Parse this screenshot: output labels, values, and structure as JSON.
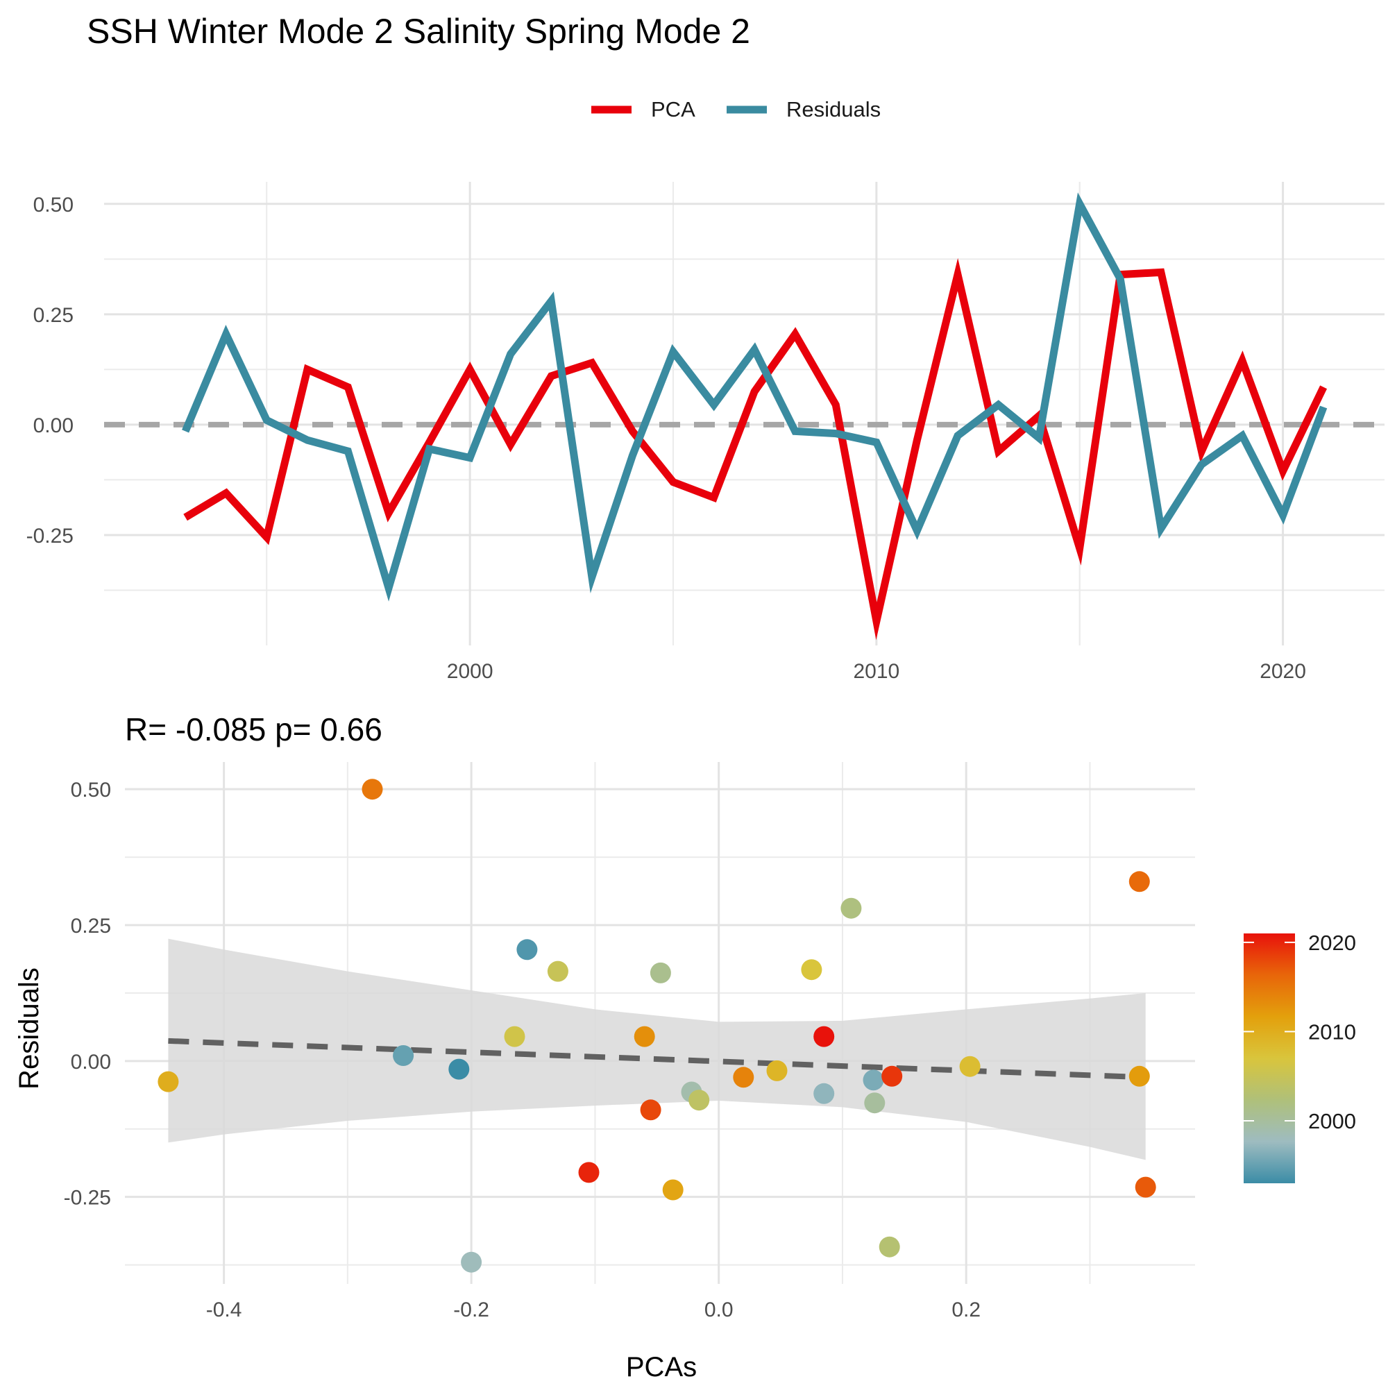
{
  "title": "SSH Winter Mode 2 Salinity Spring Mode 2",
  "legend": {
    "items": [
      {
        "label": "PCA",
        "color": "#E8000B"
      },
      {
        "label": "Residuals",
        "color": "#3A8BA0"
      }
    ],
    "placement": "top-center"
  },
  "colorbar": {
    "ticks": [
      "2020",
      "2010",
      "2000"
    ],
    "tick_values": [
      2020,
      2010,
      2000
    ],
    "range": [
      1993,
      2021
    ],
    "colors": [
      "#3B8CA6",
      "#9EBCC0",
      "#AFC07A",
      "#D9C53C",
      "#E3A00C",
      "#E8660A",
      "#E8120B"
    ]
  },
  "chart_data": [
    {
      "type": "line",
      "title": "",
      "xlabel": "",
      "ylabel": "",
      "x": [
        1993,
        1994,
        1995,
        1996,
        1997,
        1998,
        1999,
        2000,
        2001,
        2002,
        2003,
        2004,
        2005,
        2006,
        2007,
        2008,
        2009,
        2010,
        2011,
        2012,
        2013,
        2014,
        2015,
        2016,
        2017,
        2018,
        2019,
        2020,
        2021
      ],
      "series": [
        {
          "name": "PCA",
          "color": "#E8000B",
          "values": [
            -0.21,
            -0.155,
            -0.255,
            0.125,
            0.085,
            -0.2,
            -0.04,
            0.125,
            -0.045,
            0.11,
            0.14,
            -0.015,
            -0.13,
            -0.165,
            0.075,
            0.205,
            0.045,
            -0.445,
            -0.035,
            0.34,
            -0.06,
            0.02,
            -0.28,
            0.34,
            0.345,
            -0.06,
            0.145,
            -0.105,
            0.085
          ]
        },
        {
          "name": "Residuals",
          "color": "#3A8BA0",
          "values": [
            -0.015,
            0.205,
            0.01,
            -0.035,
            -0.06,
            -0.37,
            -0.055,
            -0.075,
            0.16,
            0.28,
            -0.345,
            -0.07,
            0.165,
            0.045,
            0.17,
            -0.015,
            -0.02,
            -0.04,
            -0.24,
            -0.025,
            0.045,
            -0.03,
            0.5,
            0.33,
            -0.235,
            -0.09,
            -0.025,
            -0.205,
            0.04
          ]
        }
      ],
      "reference_line": {
        "y": 0,
        "style": "dashed",
        "color": "#A6A6A6"
      },
      "ylim": [
        -0.5,
        0.55
      ],
      "xlim": [
        1991,
        2022.5
      ],
      "yticks": [
        -0.25,
        0.0,
        0.25,
        0.5
      ],
      "ytick_labels": [
        "-0.25",
        "0.00",
        "0.25",
        "0.50"
      ],
      "xticks": [
        2000,
        2010,
        2020
      ],
      "xtick_labels": [
        "2000",
        "2010",
        "2020"
      ],
      "grid": true
    },
    {
      "type": "scatter",
      "title": "R= -0.085  p= 0.66",
      "xlabel": "PCAs",
      "ylabel": "Residuals",
      "points": [
        {
          "x": -0.21,
          "y": -0.015,
          "year": 1993
        },
        {
          "x": -0.155,
          "y": 0.205,
          "year": 1994
        },
        {
          "x": -0.255,
          "y": 0.01,
          "year": 1995
        },
        {
          "x": 0.125,
          "y": -0.035,
          "year": 1996
        },
        {
          "x": 0.085,
          "y": -0.06,
          "year": 1997
        },
        {
          "x": -0.2,
          "y": -0.37,
          "year": 1998
        },
        {
          "x": -0.022,
          "y": -0.057,
          "year": 1999
        },
        {
          "x": 0.126,
          "y": -0.077,
          "year": 2000
        },
        {
          "x": -0.047,
          "y": 0.162,
          "year": 2001
        },
        {
          "x": 0.107,
          "y": 0.281,
          "year": 2002
        },
        {
          "x": 0.138,
          "y": -0.342,
          "year": 2003
        },
        {
          "x": -0.016,
          "y": -0.072,
          "year": 2004
        },
        {
          "x": -0.13,
          "y": 0.165,
          "year": 2005
        },
        {
          "x": -0.165,
          "y": 0.045,
          "year": 2006
        },
        {
          "x": 0.075,
          "y": 0.168,
          "year": 2007
        },
        {
          "x": 0.203,
          "y": -0.01,
          "year": 2008
        },
        {
          "x": 0.047,
          "y": -0.018,
          "year": 2009
        },
        {
          "x": -0.445,
          "y": -0.038,
          "year": 2010
        },
        {
          "x": -0.037,
          "y": -0.237,
          "year": 2011
        },
        {
          "x": 0.34,
          "y": -0.028,
          "year": 2012
        },
        {
          "x": -0.06,
          "y": 0.045,
          "year": 2013
        },
        {
          "x": 0.02,
          "y": -0.03,
          "year": 2014
        },
        {
          "x": -0.28,
          "y": 0.5,
          "year": 2015
        },
        {
          "x": 0.34,
          "y": 0.33,
          "year": 2016
        },
        {
          "x": 0.345,
          "y": -0.232,
          "year": 2017
        },
        {
          "x": -0.055,
          "y": -0.09,
          "year": 2018
        },
        {
          "x": 0.14,
          "y": -0.028,
          "year": 2019
        },
        {
          "x": -0.105,
          "y": -0.205,
          "year": 2020
        },
        {
          "x": 0.085,
          "y": 0.045,
          "year": 2021
        }
      ],
      "fit_line": {
        "x": [
          -0.445,
          0.345
        ],
        "y": [
          0.037,
          -0.03
        ],
        "style": "dashed",
        "color": "#616161"
      },
      "confidence_band": {
        "x": [
          -0.445,
          -0.4,
          -0.3,
          -0.2,
          -0.1,
          0.0,
          0.1,
          0.2,
          0.3,
          0.345
        ],
        "lower": [
          -0.15,
          -0.135,
          -0.11,
          -0.093,
          -0.082,
          -0.073,
          -0.085,
          -0.112,
          -0.158,
          -0.182
        ],
        "upper": [
          0.225,
          0.205,
          0.165,
          0.13,
          0.095,
          0.072,
          0.074,
          0.095,
          0.115,
          0.125
        ]
      },
      "xlim": [
        -0.48,
        0.385
      ],
      "ylim": [
        -0.41,
        0.55
      ],
      "xticks": [
        -0.4,
        -0.2,
        0.0,
        0.2
      ],
      "xtick_labels": [
        "-0.4",
        "-0.2",
        "0.0",
        "0.2"
      ],
      "yticks": [
        -0.25,
        0.0,
        0.25,
        0.5
      ],
      "ytick_labels": [
        "-0.25",
        "0.00",
        "0.25",
        "0.50"
      ],
      "color_by": "year",
      "grid": true
    }
  ]
}
